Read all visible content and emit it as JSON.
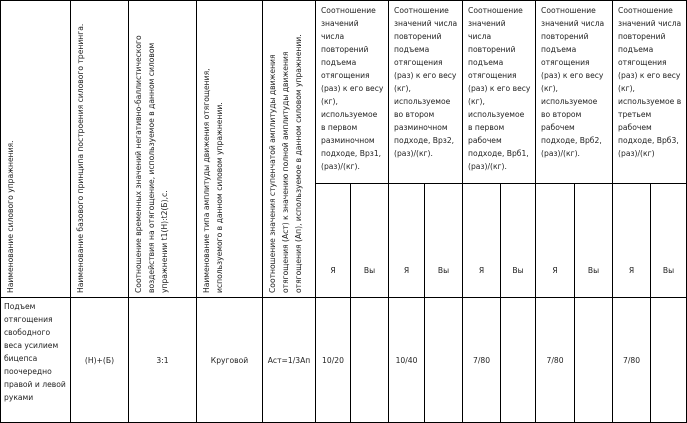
{
  "headers": {
    "exercise": "Наименование силового упражнения.",
    "principle": "Наименование базового принципа построения силового тренинга.",
    "time_ratio": "Соотношение временных значений негативно-баллистического воздействия на отягощение, используемое в данном силовом упражнении t1(Н):t2(Б),с.",
    "amplitude_type": "Наименование типа амплитуды движения отягощения, используемого в данном силовом упражнении.",
    "amplitude_ratio": "Соотношение значения ступенчатой амплитуды движения отягощения (Аст) к значению полной амплитуды движения отягощения (Ап), используемое в данном силовом упражнении.",
    "groups": [
      "Соотношение значений числа повторений подъема отягощения (раз) к его весу (кг), используемое в первом разминочном подходе, Врз1, (раз)/(кг).",
      "Соотношение значений числа повторений подъема отягощения (раз) к его весу (кг), используемое во втором разминочном подходе, Врз2, (раз)/(кг).",
      "Соотношение значений числа повторений подъема отягощения (раз) к его весу (кг), используемое в первом рабочем подходе, Врб1, (раз)/(кг).",
      "Соотношение значений числа повторений подъема отягощения (раз) к его весу (кг), используемое во втором рабочем подходе, Врб2, (раз)/(кг).",
      "Соотношение значений числа повторений подъема отягощения (раз) к его весу (кг), используемое в третьем рабочем подходе, Врб3, (раз)/(кг)"
    ],
    "sub_me": "Я",
    "sub_you": "Вы"
  },
  "row": {
    "exercise": "Подъем отягощения свободного веса усилием бицепса поочередно правой и левой руками",
    "principle": "(Н)+(Б)",
    "time_ratio": "3:1",
    "amplitude_type": "Круговой",
    "amplitude_ratio": "Аст=1/3Ап",
    "values": [
      {
        "me": "10/20",
        "you": ""
      },
      {
        "me": "10/40",
        "you": ""
      },
      {
        "me": "7/80",
        "you": ""
      },
      {
        "me": "7/80",
        "you": ""
      },
      {
        "me": "7/80",
        "you": ""
      }
    ]
  }
}
